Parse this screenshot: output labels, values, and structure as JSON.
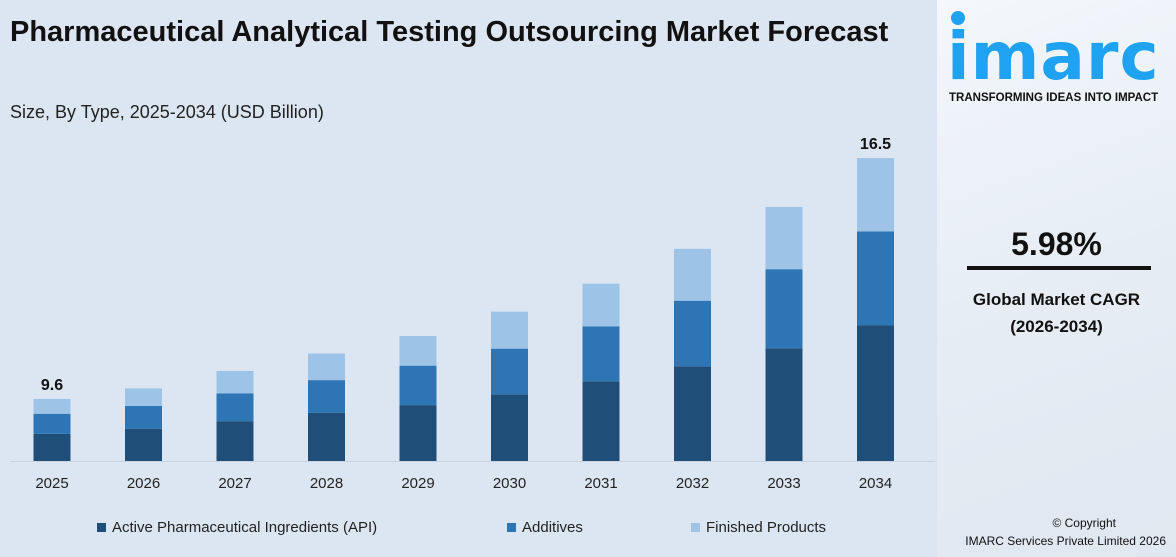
{
  "header": {
    "title": "Pharmaceutical Analytical Testing Outsourcing Market Forecast",
    "subtitle": "Size, By Type, 2025-2034 (USD Billion)"
  },
  "brand": {
    "logo_text": "imarc",
    "tagline": "TRANSFORMING IDEAS INTO IMPACT",
    "color": "#1ea2f1"
  },
  "cagr": {
    "value": "5.98%",
    "label": "Global Market CAGR",
    "period": "(2026-2034)"
  },
  "copyright": {
    "line1": "© Copyright",
    "line2": "IMARC Services Private Limited 2026"
  },
  "chart_data": {
    "type": "bar",
    "stacked": true,
    "categories": [
      "2025",
      "2026",
      "2027",
      "2028",
      "2029",
      "2030",
      "2031",
      "2032",
      "2033",
      "2034"
    ],
    "series": [
      {
        "name": "Active Pharmaceutical Ingredients (API)",
        "color": "#1f4e79",
        "values": [
          4.2,
          4.4,
          4.6,
          4.9,
          5.1,
          5.4,
          5.8,
          6.2,
          6.7,
          7.4
        ]
      },
      {
        "name": "Additives",
        "color": "#2e75b6",
        "values": [
          3.1,
          3.1,
          3.2,
          3.3,
          3.6,
          3.7,
          4.0,
          4.3,
          4.7,
          5.1
        ]
      },
      {
        "name": "Finished Products",
        "color": "#9dc3e6",
        "values": [
          2.3,
          2.4,
          2.6,
          2.7,
          2.7,
          3.0,
          3.1,
          3.4,
          3.7,
          4.0
        ]
      }
    ],
    "data_labels": {
      "2025": "9.6",
      "2034": "16.5"
    },
    "grid": false,
    "y_axis_shown": false,
    "legend": "bottom"
  }
}
